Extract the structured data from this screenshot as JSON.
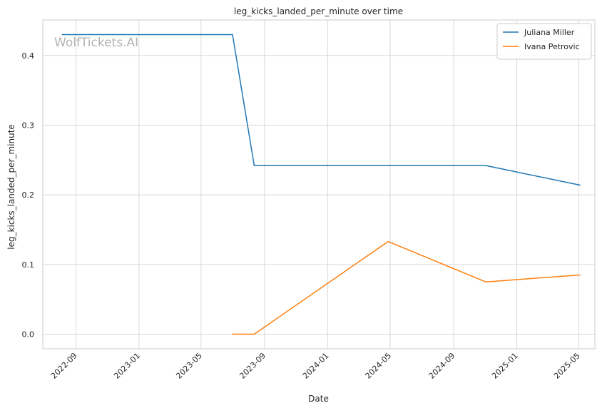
{
  "chart_data": {
    "type": "line",
    "title": "leg_kicks_landed_per_minute over time",
    "xlabel": "Date",
    "ylabel": "leg_kicks_landed_per_minute",
    "watermark": "WolfTickets.AI",
    "grid": true,
    "legend_position": "top-right",
    "xlim": [
      "2022-06-29",
      "2025-06-01"
    ],
    "ylim": [
      -0.021,
      0.451
    ],
    "x_ticks": [
      {
        "date": "2022-09-01",
        "label": "2022-09"
      },
      {
        "date": "2023-01-01",
        "label": "2023-01"
      },
      {
        "date": "2023-05-01",
        "label": "2023-05"
      },
      {
        "date": "2023-09-01",
        "label": "2023-09"
      },
      {
        "date": "2024-01-01",
        "label": "2024-01"
      },
      {
        "date": "2024-05-01",
        "label": "2024-05"
      },
      {
        "date": "2024-09-01",
        "label": "2024-09"
      },
      {
        "date": "2025-01-01",
        "label": "2025-01"
      },
      {
        "date": "2025-05-01",
        "label": "2025-05"
      }
    ],
    "y_ticks": [
      {
        "value": 0.0,
        "label": "0.0"
      },
      {
        "value": 0.1,
        "label": "0.1"
      },
      {
        "value": 0.2,
        "label": "0.2"
      },
      {
        "value": 0.3,
        "label": "0.3"
      },
      {
        "value": 0.4,
        "label": "0.4"
      }
    ],
    "series": [
      {
        "name": "Juliana Miller",
        "color": "#1f77b4",
        "points": [
          {
            "x": "2022-08-06",
            "y": 0.43
          },
          {
            "x": "2023-07-01",
            "y": 0.43
          },
          {
            "x": "2023-08-12",
            "y": 0.242
          },
          {
            "x": "2024-11-02",
            "y": 0.242
          },
          {
            "x": "2025-05-03",
            "y": 0.214
          }
        ]
      },
      {
        "name": "Ivana Petrovic",
        "color": "#ff7f0e",
        "points": [
          {
            "x": "2023-07-01",
            "y": 0.0
          },
          {
            "x": "2023-08-12",
            "y": 0.0
          },
          {
            "x": "2024-04-27",
            "y": 0.133
          },
          {
            "x": "2024-11-02",
            "y": 0.075
          },
          {
            "x": "2025-05-03",
            "y": 0.085
          }
        ]
      }
    ]
  }
}
